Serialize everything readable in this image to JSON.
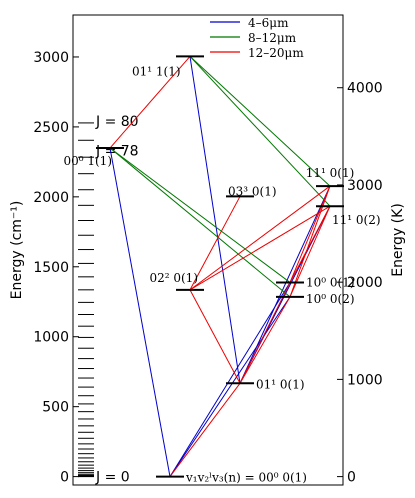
{
  "chart_data": {
    "type": "energy-level-diagram",
    "ylabel_left": "Energy (cm⁻¹)",
    "ylabel_right": "Energy (K)",
    "ylim_left": [
      -60,
      3300
    ],
    "yticks_left": [
      "0",
      "500",
      "1000",
      "1500",
      "2000",
      "2500",
      "3000"
    ],
    "yticks_left_values": [
      0,
      500,
      1000,
      1500,
      2000,
      2500,
      3000
    ],
    "yticks_right": [
      "0",
      "1000",
      "2000",
      "3000",
      "4000"
    ],
    "yticks_right_values_K": [
      0,
      1000,
      2000,
      3000,
      4000
    ],
    "cm_to_K": 1.4388,
    "legend": [
      {
        "label": "4–6μm",
        "color": "#0000cc"
      },
      {
        "label": "8–12μm",
        "color": "#007700"
      },
      {
        "label": "12–20μm",
        "color": "#ee0000"
      }
    ],
    "levels": [
      {
        "id": "ground",
        "label": "v₁v₂ˡv₃(n) = 00⁰ 0(1)",
        "energy": 0,
        "x": 1.0
      },
      {
        "id": "01_1_0_1",
        "label": "01¹ 0(1)",
        "energy": 667,
        "x": 1.35
      },
      {
        "id": "02_2_0_1",
        "label": "02² 0(1)",
        "energy": 1335,
        "x": 1.1
      },
      {
        "id": "10_0_0_1",
        "label": "10⁰ 0(1)",
        "energy": 1388,
        "x": 1.6
      },
      {
        "id": "10_0_0_2",
        "label": "10⁰ 0(2)",
        "energy": 1285,
        "x": 1.6
      },
      {
        "id": "03_3_0_1",
        "label": "03³ 0(1)",
        "energy": 2003,
        "x": 1.35
      },
      {
        "id": "11_1_0_1",
        "label": "11¹ 0(1)",
        "energy": 2077,
        "x": 1.8
      },
      {
        "id": "11_1_0_2",
        "label": "11¹ 0(2)",
        "energy": 1933,
        "x": 1.8
      },
      {
        "id": "00_0_1_1",
        "label": "00⁰ 1(1)",
        "energy": 2349,
        "x": 0.7
      },
      {
        "id": "01_1_1_1",
        "label": "01¹ 1(1)",
        "energy": 3004,
        "x": 1.1
      }
    ],
    "rotational_ladder": {
      "B": 0.3902,
      "j_labels": [
        {
          "label": "J = 0",
          "J": 0
        },
        {
          "label": "J = 78",
          "J": 78
        },
        {
          "label": "J = 80",
          "J": 80
        }
      ]
    },
    "transitions": [
      {
        "from": "ground",
        "to": "00_0_1_1",
        "band": "4–6μm"
      },
      {
        "from": "ground",
        "to": "10_0_0_1",
        "band": "4–6μm"
      },
      {
        "from": "ground",
        "to": "10_0_0_2",
        "band": "4–6μm"
      },
      {
        "from": "01_1_0_1",
        "to": "11_1_0_1",
        "band": "4–6μm"
      },
      {
        "from": "01_1_0_1",
        "to": "11_1_0_2",
        "band": "4–6μm"
      },
      {
        "from": "01_1_0_1",
        "to": "01_1_1_1",
        "band": "4–6μm"
      },
      {
        "from": "00_0_1_1",
        "to": "10_0_0_1",
        "band": "8–12μm"
      },
      {
        "from": "00_0_1_1",
        "to": "10_0_0_2",
        "band": "8–12μm"
      },
      {
        "from": "01_1_1_1",
        "to": "11_1_0_1",
        "band": "8–12μm"
      },
      {
        "from": "01_1_1_1",
        "to": "11_1_0_2",
        "band": "8–12μm"
      },
      {
        "from": "ground",
        "to": "01_1_0_1",
        "band": "12–20μm"
      },
      {
        "from": "01_1_0_1",
        "to": "02_2_0_1",
        "band": "12–20μm"
      },
      {
        "from": "01_1_0_1",
        "to": "10_0_0_1",
        "band": "12–20μm"
      },
      {
        "from": "01_1_0_1",
        "to": "10_0_0_2",
        "band": "12–20μm"
      },
      {
        "from": "02_2_0_1",
        "to": "03_3_0_1",
        "band": "12–20μm"
      },
      {
        "from": "02_2_0_1",
        "to": "11_1_0_1",
        "band": "12–20μm"
      },
      {
        "from": "02_2_0_1",
        "to": "11_1_0_2",
        "band": "12–20μm"
      },
      {
        "from": "10_0_0_1",
        "to": "11_1_0_1",
        "band": "12–20μm"
      },
      {
        "from": "10_0_0_1",
        "to": "11_1_0_2",
        "band": "12–20μm"
      },
      {
        "from": "10_0_0_2",
        "to": "11_1_0_1",
        "band": "12–20μm"
      },
      {
        "from": "10_0_0_2",
        "to": "11_1_0_2",
        "band": "12–20μm"
      },
      {
        "from": "00_0_1_1",
        "to": "01_1_1_1",
        "band": "12–20μm"
      }
    ]
  }
}
